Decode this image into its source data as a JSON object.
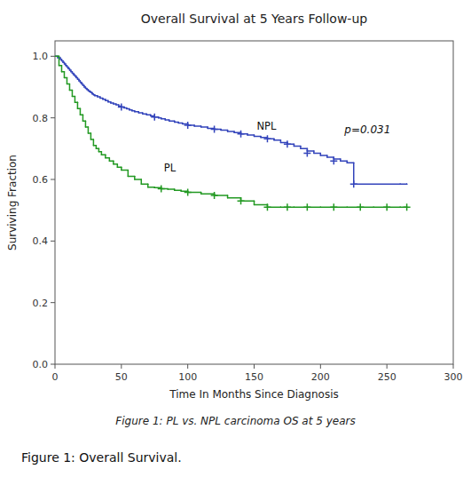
{
  "chart_data": {
    "type": "step",
    "title": "Overall Survival at 5 Years Follow-up",
    "xlabel": "Time In Months Since Diagnosis",
    "ylabel": "Surviving Fraction",
    "caption": "Figure 1: PL vs. NPL carcinoma OS at 5 years",
    "figure_label": "Figure 1: Overall Survival.",
    "xlim": [
      0,
      300
    ],
    "ylim": [
      0.0,
      1.05
    ],
    "xticks": [
      0,
      50,
      100,
      150,
      200,
      250,
      300
    ],
    "yticks": [
      {
        "value": 0.0,
        "label": "0.0"
      },
      0.2,
      0.4,
      0.6,
      0.8,
      {
        "value": 1.0,
        "label": "1.0"
      }
    ],
    "grid": false,
    "annotations": [
      {
        "text": "NPL",
        "x": 152,
        "y": 0.762
      },
      {
        "text": "PL",
        "x": 82,
        "y": 0.625
      },
      {
        "text": "p=0.031",
        "x": 218,
        "y": 0.75
      }
    ],
    "series": [
      {
        "type": "step",
        "color": "#3344BB",
        "x": [
          0,
          2,
          4,
          5,
          6,
          7,
          8,
          9,
          10,
          11,
          12,
          13,
          14,
          15,
          16,
          17,
          18,
          19,
          20,
          21,
          22,
          23,
          24,
          25,
          26,
          27,
          28,
          29,
          30,
          32,
          34,
          36,
          38,
          40,
          42,
          44,
          46,
          48,
          50,
          52,
          54,
          56,
          58,
          60,
          63,
          66,
          69,
          72,
          75,
          78,
          80,
          83,
          86,
          90,
          93,
          96,
          100,
          105,
          110,
          115,
          120,
          125,
          130,
          135,
          140,
          145,
          150,
          155,
          160,
          165,
          170,
          175,
          180,
          185,
          190,
          195,
          200,
          205,
          210,
          215,
          220,
          225,
          260,
          265
        ],
        "values": [
          1.0,
          0.995,
          0.99,
          0.985,
          0.98,
          0.975,
          0.97,
          0.965,
          0.96,
          0.955,
          0.95,
          0.945,
          0.94,
          0.935,
          0.93,
          0.925,
          0.92,
          0.915,
          0.91,
          0.905,
          0.9,
          0.896,
          0.892,
          0.888,
          0.885,
          0.882,
          0.878,
          0.875,
          0.872,
          0.868,
          0.864,
          0.86,
          0.856,
          0.852,
          0.848,
          0.845,
          0.842,
          0.838,
          0.835,
          0.832,
          0.829,
          0.826,
          0.823,
          0.82,
          0.816,
          0.813,
          0.81,
          0.806,
          0.803,
          0.8,
          0.797,
          0.793,
          0.79,
          0.786,
          0.783,
          0.78,
          0.776,
          0.773,
          0.77,
          0.766,
          0.763,
          0.76,
          0.756,
          0.752,
          0.748,
          0.744,
          0.74,
          0.736,
          0.732,
          0.728,
          0.72,
          0.715,
          0.708,
          0.7,
          0.692,
          0.685,
          0.678,
          0.672,
          0.666,
          0.66,
          0.654,
          0.585,
          0.585,
          0.585
        ]
      },
      {
        "type": "step",
        "color": "#229922",
        "x": [
          0,
          3,
          5,
          7,
          9,
          11,
          13,
          15,
          17,
          19,
          21,
          23,
          25,
          27,
          29,
          31,
          33,
          35,
          38,
          41,
          44,
          47,
          50,
          55,
          60,
          65,
          70,
          75,
          80,
          85,
          90,
          95,
          100,
          110,
          120,
          130,
          140,
          150,
          160,
          170,
          180,
          190,
          200,
          210,
          220,
          230,
          240,
          250,
          260,
          265
        ],
        "values": [
          1.0,
          0.97,
          0.95,
          0.93,
          0.91,
          0.89,
          0.87,
          0.85,
          0.83,
          0.81,
          0.79,
          0.77,
          0.75,
          0.73,
          0.71,
          0.7,
          0.69,
          0.68,
          0.67,
          0.66,
          0.65,
          0.64,
          0.63,
          0.61,
          0.6,
          0.585,
          0.575,
          0.573,
          0.57,
          0.568,
          0.565,
          0.562,
          0.558,
          0.553,
          0.548,
          0.54,
          0.53,
          0.518,
          0.51,
          0.51,
          0.51,
          0.51,
          0.51,
          0.51,
          0.51,
          0.51,
          0.51,
          0.51,
          0.51,
          0.51
        ]
      },
      {
        "type": "scatter",
        "marker": "plus",
        "color": "#3344BB",
        "x": [
          50,
          75,
          100,
          120,
          140,
          160,
          175,
          190,
          210,
          225
        ],
        "values": [
          0.835,
          0.803,
          0.776,
          0.763,
          0.748,
          0.732,
          0.715,
          0.685,
          0.66,
          0.585
        ]
      },
      {
        "type": "scatter",
        "marker": "plus",
        "color": "#229922",
        "x": [
          80,
          100,
          120,
          140,
          160,
          175,
          190,
          210,
          230,
          250,
          265
        ],
        "values": [
          0.57,
          0.558,
          0.548,
          0.53,
          0.51,
          0.51,
          0.51,
          0.51,
          0.51,
          0.51,
          0.51
        ]
      }
    ]
  }
}
